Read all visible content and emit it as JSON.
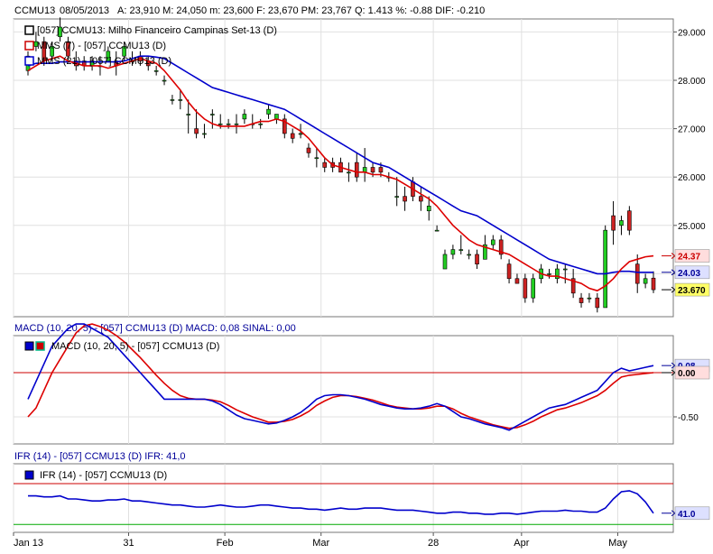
{
  "header": {
    "symbol": "CCMU13",
    "date": "08/05/2013",
    "stats": "A: 23,910   M: 24,050   m: 23,600   F: 23,670   PM: 23,767   Q: 1.413   %: -0.88  DIF: -0.210"
  },
  "price_panel": {
    "legend": [
      {
        "label": "[057] CCMU13: Milho Financeiro Campinas Set-13    (D)",
        "color": "#000000"
      },
      {
        "label": "MMS (7)  - [057] CCMU13 (D)",
        "color": "#cc0000"
      },
      {
        "label": "MMS (21) - [057] CCMU13 (D)",
        "color": "#0000cc"
      }
    ],
    "y_ticks": [
      "29.000",
      "28.000",
      "27.000",
      "26.000",
      "25.000",
      "24.000"
    ],
    "tags": [
      {
        "value": "24.37",
        "color": "#cc0000",
        "bg": "#ffdddd",
        "y": 24.37
      },
      {
        "value": "24.03",
        "color": "#000099",
        "bg": "#dde0ff",
        "y": 24.03
      },
      {
        "value": "23.670",
        "color": "#000000",
        "bg": "#ffff66",
        "y": 23.67
      }
    ]
  },
  "macd_panel": {
    "title": "MACD (10, 20, 5)  - [057] CCMU13 (D)   MACD: 0,08    SINAL: 0,00",
    "legend": "MACD (10, 20, 5)   - [057] CCMU13 (D)",
    "y_ticks": [
      "-0.50"
    ],
    "tags": [
      {
        "value": "0.08",
        "color": "#000099",
        "bg": "#dde0ff",
        "y": 0.08
      },
      {
        "value": "0.00",
        "color": "#000000",
        "bg": "#ffdddd",
        "y": 0.0
      }
    ]
  },
  "ifr_panel": {
    "title": "IFR (14)   - [057] CCMU13 (D)   IFR: 41,0",
    "legend": "IFR (14)   - [057] CCMU13 (D)",
    "tags": [
      {
        "value": "41.0",
        "color": "#000099",
        "bg": "#dde0ff",
        "y": 41.0
      }
    ]
  },
  "x_axis": {
    "labels": [
      {
        "text": "Jan 13",
        "i": 0
      },
      {
        "text": "31",
        "i": 13
      },
      {
        "text": "Feb",
        "i": 25
      },
      {
        "text": "Mar",
        "i": 37
      },
      {
        "text": "28",
        "i": 51
      },
      {
        "text": "Apr",
        "i": 62
      },
      {
        "text": "May",
        "i": 74
      }
    ]
  },
  "chart_data": {
    "type": "line",
    "candles": [
      {
        "o": 28.2,
        "h": 28.6,
        "l": 28.1,
        "c": 28.5
      },
      {
        "o": 28.7,
        "h": 29.0,
        "l": 28.6,
        "c": 28.8
      },
      {
        "o": 28.8,
        "h": 28.9,
        "l": 28.3,
        "c": 28.4
      },
      {
        "o": 28.5,
        "h": 28.8,
        "l": 28.4,
        "c": 28.7
      },
      {
        "o": 28.9,
        "h": 29.3,
        "l": 28.8,
        "c": 29.1
      },
      {
        "o": 28.8,
        "h": 28.9,
        "l": 28.4,
        "c": 28.5
      },
      {
        "o": 28.4,
        "h": 28.6,
        "l": 28.2,
        "c": 28.3
      },
      {
        "o": 28.4,
        "h": 28.5,
        "l": 28.2,
        "c": 28.3
      },
      {
        "o": 28.3,
        "h": 28.5,
        "l": 28.2,
        "c": 28.4
      },
      {
        "o": 28.3,
        "h": 28.5,
        "l": 28.1,
        "c": 28.3
      },
      {
        "o": 28.4,
        "h": 28.7,
        "l": 28.4,
        "c": 28.6
      },
      {
        "o": 28.4,
        "h": 28.6,
        "l": 28.1,
        "c": 28.3
      },
      {
        "o": 28.5,
        "h": 28.8,
        "l": 28.4,
        "c": 28.7
      },
      {
        "o": 28.4,
        "h": 28.6,
        "l": 28.3,
        "c": 28.4
      },
      {
        "o": 28.5,
        "h": 28.6,
        "l": 28.3,
        "c": 28.4
      },
      {
        "o": 28.4,
        "h": 28.5,
        "l": 28.2,
        "c": 28.3
      },
      {
        "o": 28.2,
        "h": 28.3,
        "l": 28.1,
        "c": 28.2
      },
      {
        "o": 28.0,
        "h": 28.1,
        "l": 27.9,
        "c": 28.0
      },
      {
        "o": 27.6,
        "h": 27.7,
        "l": 27.5,
        "c": 27.6
      },
      {
        "o": 27.6,
        "h": 27.8,
        "l": 27.4,
        "c": 27.6
      },
      {
        "o": 27.3,
        "h": 27.6,
        "l": 26.9,
        "c": 27.3
      },
      {
        "o": 27.0,
        "h": 27.4,
        "l": 26.8,
        "c": 26.9
      },
      {
        "o": 26.9,
        "h": 27.1,
        "l": 26.8,
        "c": 26.9
      },
      {
        "o": 27.3,
        "h": 27.4,
        "l": 27.0,
        "c": 27.3
      },
      {
        "o": 27.1,
        "h": 27.3,
        "l": 27.0,
        "c": 27.1
      },
      {
        "o": 27.1,
        "h": 27.2,
        "l": 27.0,
        "c": 27.1
      },
      {
        "o": 27.1,
        "h": 27.3,
        "l": 26.9,
        "c": 27.1
      },
      {
        "o": 27.2,
        "h": 27.4,
        "l": 27.1,
        "c": 27.3
      },
      {
        "o": 27.1,
        "h": 27.3,
        "l": 27.0,
        "c": 27.1
      },
      {
        "o": 27.1,
        "h": 27.2,
        "l": 27.0,
        "c": 27.1
      },
      {
        "o": 27.3,
        "h": 27.5,
        "l": 27.2,
        "c": 27.4
      },
      {
        "o": 27.2,
        "h": 27.3,
        "l": 27.1,
        "c": 27.3
      },
      {
        "o": 27.2,
        "h": 27.3,
        "l": 26.8,
        "c": 26.9
      },
      {
        "o": 26.9,
        "h": 27.0,
        "l": 26.7,
        "c": 26.8
      },
      {
        "o": 26.9,
        "h": 27.1,
        "l": 26.8,
        "c": 26.9
      },
      {
        "o": 26.6,
        "h": 26.7,
        "l": 26.4,
        "c": 26.5
      },
      {
        "o": 26.4,
        "h": 26.6,
        "l": 26.2,
        "c": 26.4
      },
      {
        "o": 26.3,
        "h": 26.4,
        "l": 26.1,
        "c": 26.2
      },
      {
        "o": 26.3,
        "h": 26.4,
        "l": 26.1,
        "c": 26.2
      },
      {
        "o": 26.3,
        "h": 26.4,
        "l": 26.1,
        "c": 26.1
      },
      {
        "o": 26.1,
        "h": 26.3,
        "l": 25.9,
        "c": 26.1
      },
      {
        "o": 26.3,
        "h": 26.5,
        "l": 25.9,
        "c": 26.0
      },
      {
        "o": 26.1,
        "h": 26.6,
        "l": 25.9,
        "c": 26.2
      },
      {
        "o": 26.2,
        "h": 26.3,
        "l": 26.0,
        "c": 26.1
      },
      {
        "o": 26.2,
        "h": 26.3,
        "l": 26.0,
        "c": 26.1
      },
      {
        "o": 26.0,
        "h": 26.1,
        "l": 25.9,
        "c": 26.0
      },
      {
        "o": 25.6,
        "h": 26.0,
        "l": 25.4,
        "c": 25.6
      },
      {
        "o": 25.6,
        "h": 25.8,
        "l": 25.3,
        "c": 25.5
      },
      {
        "o": 25.9,
        "h": 26.0,
        "l": 25.5,
        "c": 25.6
      },
      {
        "o": 25.6,
        "h": 25.8,
        "l": 25.3,
        "c": 25.5
      },
      {
        "o": 25.3,
        "h": 25.6,
        "l": 25.1,
        "c": 25.4
      },
      {
        "o": 24.9,
        "h": 25.0,
        "l": 24.9,
        "c": 24.9
      },
      {
        "o": 24.1,
        "h": 24.5,
        "l": 24.1,
        "c": 24.4
      },
      {
        "o": 24.4,
        "h": 24.6,
        "l": 24.3,
        "c": 24.5
      },
      {
        "o": 24.5,
        "h": 24.8,
        "l": 24.4,
        "c": 24.5
      },
      {
        "o": 24.4,
        "h": 24.5,
        "l": 24.3,
        "c": 24.4
      },
      {
        "o": 24.4,
        "h": 24.5,
        "l": 24.1,
        "c": 24.2
      },
      {
        "o": 24.3,
        "h": 24.8,
        "l": 24.3,
        "c": 24.6
      },
      {
        "o": 24.6,
        "h": 24.8,
        "l": 24.5,
        "c": 24.7
      },
      {
        "o": 24.7,
        "h": 24.8,
        "l": 24.3,
        "c": 24.4
      },
      {
        "o": 24.2,
        "h": 24.3,
        "l": 23.8,
        "c": 23.9
      },
      {
        "o": 23.9,
        "h": 24.0,
        "l": 23.8,
        "c": 23.8
      },
      {
        "o": 23.9,
        "h": 24.0,
        "l": 23.4,
        "c": 23.5
      },
      {
        "o": 23.5,
        "h": 24.0,
        "l": 23.4,
        "c": 23.9
      },
      {
        "o": 23.9,
        "h": 24.2,
        "l": 23.8,
        "c": 24.1
      },
      {
        "o": 24.0,
        "h": 24.1,
        "l": 23.9,
        "c": 24.0
      },
      {
        "o": 23.9,
        "h": 24.2,
        "l": 23.8,
        "c": 24.1
      },
      {
        "o": 24.1,
        "h": 24.2,
        "l": 23.8,
        "c": 24.1
      },
      {
        "o": 23.9,
        "h": 24.1,
        "l": 23.5,
        "c": 23.6
      },
      {
        "o": 23.5,
        "h": 23.6,
        "l": 23.3,
        "c": 23.4
      },
      {
        "o": 23.5,
        "h": 23.6,
        "l": 23.4,
        "c": 23.5
      },
      {
        "o": 23.5,
        "h": 23.6,
        "l": 23.2,
        "c": 23.3
      },
      {
        "o": 23.3,
        "h": 25.0,
        "l": 23.3,
        "c": 24.9
      },
      {
        "o": 25.2,
        "h": 25.5,
        "l": 24.6,
        "c": 24.9
      },
      {
        "o": 25.0,
        "h": 25.2,
        "l": 24.8,
        "c": 25.1
      },
      {
        "o": 25.3,
        "h": 25.4,
        "l": 24.8,
        "c": 24.9
      },
      {
        "o": 24.2,
        "h": 24.4,
        "l": 23.6,
        "c": 23.8
      },
      {
        "o": 23.8,
        "h": 24.0,
        "l": 23.7,
        "c": 23.9
      },
      {
        "o": 23.91,
        "h": 24.05,
        "l": 23.6,
        "c": 23.67
      }
    ],
    "ma7": [
      28.2,
      28.3,
      28.4,
      28.45,
      28.5,
      28.4,
      28.35,
      28.3,
      28.3,
      28.3,
      28.25,
      28.3,
      28.35,
      28.4,
      28.45,
      28.4,
      28.35,
      28.2,
      28.0,
      27.8,
      27.55,
      27.35,
      27.2,
      27.1,
      27.05,
      27.05,
      27.05,
      27.05,
      27.1,
      27.15,
      27.15,
      27.2,
      27.15,
      27.05,
      26.95,
      26.8,
      26.6,
      26.4,
      26.25,
      26.2,
      26.15,
      26.1,
      26.1,
      26.05,
      26.05,
      26.0,
      25.95,
      25.85,
      25.75,
      25.65,
      25.55,
      25.4,
      25.2,
      25.0,
      24.85,
      24.7,
      24.6,
      24.55,
      24.5,
      24.45,
      24.4,
      24.3,
      24.2,
      24.1,
      24.0,
      23.95,
      23.95,
      23.9,
      23.85,
      23.8,
      23.7,
      23.65,
      23.75,
      23.9,
      24.1,
      24.25,
      24.3,
      24.35,
      24.37
    ],
    "ma21": [
      28.3,
      28.35,
      28.35,
      28.35,
      28.38,
      28.38,
      28.38,
      28.38,
      28.38,
      28.38,
      28.38,
      28.38,
      28.4,
      28.45,
      28.5,
      28.5,
      28.48,
      28.45,
      28.35,
      28.25,
      28.15,
      28.05,
      27.95,
      27.85,
      27.8,
      27.75,
      27.7,
      27.65,
      27.6,
      27.55,
      27.5,
      27.45,
      27.4,
      27.3,
      27.2,
      27.1,
      27.0,
      26.9,
      26.8,
      26.7,
      26.6,
      26.5,
      26.4,
      26.3,
      26.25,
      26.2,
      26.1,
      26.0,
      25.9,
      25.8,
      25.7,
      25.6,
      25.5,
      25.4,
      25.3,
      25.25,
      25.2,
      25.1,
      25.0,
      24.9,
      24.8,
      24.7,
      24.6,
      24.5,
      24.4,
      24.3,
      24.25,
      24.2,
      24.15,
      24.1,
      24.05,
      24.0,
      24.0,
      24.03,
      24.05,
      24.05,
      24.03,
      24.03,
      24.03
    ],
    "macd": [
      -0.3,
      -0.1,
      0.1,
      0.3,
      0.4,
      0.5,
      0.55,
      0.55,
      0.5,
      0.45,
      0.4,
      0.3,
      0.2,
      0.1,
      0.0,
      -0.1,
      -0.2,
      -0.3,
      -0.3,
      -0.3,
      -0.3,
      -0.3,
      -0.3,
      -0.32,
      -0.36,
      -0.42,
      -0.48,
      -0.52,
      -0.54,
      -0.56,
      -0.58,
      -0.57,
      -0.54,
      -0.5,
      -0.45,
      -0.38,
      -0.3,
      -0.26,
      -0.25,
      -0.25,
      -0.26,
      -0.28,
      -0.3,
      -0.33,
      -0.36,
      -0.38,
      -0.4,
      -0.41,
      -0.41,
      -0.4,
      -0.38,
      -0.35,
      -0.38,
      -0.44,
      -0.5,
      -0.52,
      -0.55,
      -0.58,
      -0.6,
      -0.62,
      -0.65,
      -0.6,
      -0.55,
      -0.5,
      -0.45,
      -0.4,
      -0.38,
      -0.36,
      -0.32,
      -0.28,
      -0.24,
      -0.2,
      -0.1,
      0.0,
      0.05,
      0.02,
      0.04,
      0.06,
      0.08
    ],
    "signal": [
      -0.5,
      -0.4,
      -0.2,
      0.0,
      0.15,
      0.3,
      0.45,
      0.53,
      0.55,
      0.52,
      0.48,
      0.42,
      0.35,
      0.26,
      0.17,
      0.07,
      -0.03,
      -0.12,
      -0.2,
      -0.26,
      -0.29,
      -0.3,
      -0.3,
      -0.31,
      -0.33,
      -0.37,
      -0.42,
      -0.46,
      -0.5,
      -0.53,
      -0.56,
      -0.56,
      -0.55,
      -0.53,
      -0.49,
      -0.44,
      -0.37,
      -0.32,
      -0.28,
      -0.26,
      -0.26,
      -0.27,
      -0.29,
      -0.31,
      -0.34,
      -0.37,
      -0.39,
      -0.4,
      -0.41,
      -0.41,
      -0.4,
      -0.38,
      -0.38,
      -0.41,
      -0.46,
      -0.5,
      -0.53,
      -0.56,
      -0.59,
      -0.61,
      -0.63,
      -0.62,
      -0.59,
      -0.55,
      -0.5,
      -0.46,
      -0.42,
      -0.4,
      -0.37,
      -0.34,
      -0.3,
      -0.26,
      -0.2,
      -0.12,
      -0.05,
      -0.03,
      -0.02,
      -0.01,
      0.0
    ],
    "ifr": [
      58,
      58,
      57,
      57,
      58,
      55,
      55,
      54,
      53,
      53,
      54,
      54,
      55,
      53,
      53,
      52,
      51,
      50,
      49,
      49,
      48,
      47,
      47,
      48,
      49,
      48,
      47,
      47,
      48,
      49,
      49,
      48,
      47,
      46,
      46,
      45,
      45,
      44,
      45,
      46,
      45,
      45,
      46,
      46,
      46,
      45,
      44,
      44,
      44,
      43,
      42,
      41,
      41,
      42,
      42,
      41,
      41,
      40,
      40,
      41,
      41,
      40,
      41,
      42,
      43,
      43,
      43,
      44,
      43,
      43,
      42,
      42,
      46,
      55,
      62,
      63,
      60,
      52,
      41
    ]
  }
}
